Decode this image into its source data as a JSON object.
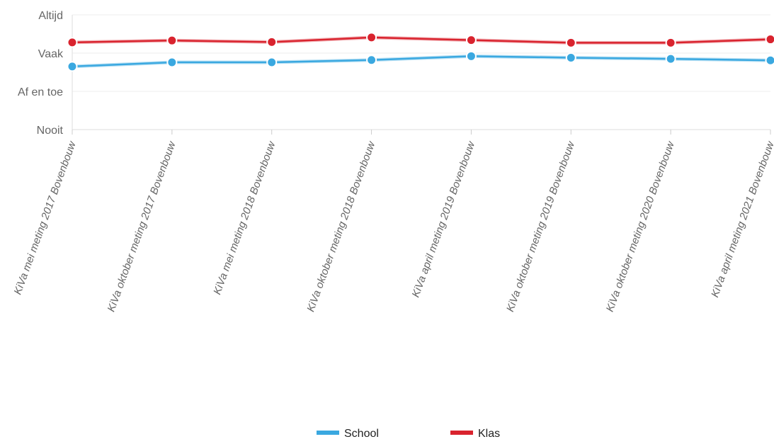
{
  "chart_data": {
    "type": "line",
    "title": "",
    "xlabel": "",
    "ylabel": "",
    "categories": [
      "KiVa mei meting 2017 Bovenbouw",
      "KiVa oktober meting 2017 Bovenbouw",
      "KiVa mei meting 2018 Bovenbouw",
      "KiVa oktober meting 2018 Bovenbouw",
      "KiVa april meting 2019 Bovenbouw",
      "KiVa oktober meting 2019 Bovenbouw",
      "KiVa oktober meting 2020 Bovenbouw",
      "KiVa april meting 2021 Bovenbouw"
    ],
    "yticks": [
      {
        "value": 1,
        "label": "Nooit"
      },
      {
        "value": 2,
        "label": "Af en toe"
      },
      {
        "value": 3,
        "label": "Vaak"
      },
      {
        "value": 4,
        "label": "Altijd"
      }
    ],
    "ylim": [
      1,
      4
    ],
    "grid": true,
    "legend_position": "bottom-center",
    "series": [
      {
        "name": "School",
        "color": "#3aa8e0",
        "values": [
          2.65,
          2.76,
          2.76,
          2.82,
          2.92,
          2.88,
          2.85,
          2.81
        ]
      },
      {
        "name": "Klas",
        "color": "#d9232e",
        "values": [
          3.28,
          3.33,
          3.29,
          3.41,
          3.34,
          3.27,
          3.27,
          3.36
        ]
      }
    ]
  }
}
